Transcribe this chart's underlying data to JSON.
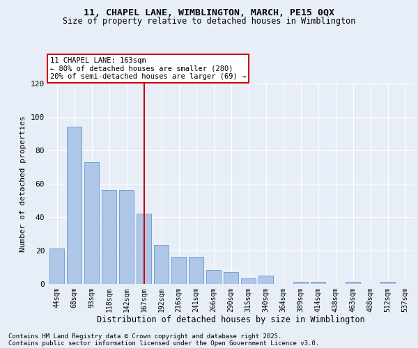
{
  "title1": "11, CHAPEL LANE, WIMBLINGTON, MARCH, PE15 0QX",
  "title2": "Size of property relative to detached houses in Wimblington",
  "xlabel": "Distribution of detached houses by size in Wimblington",
  "ylabel": "Number of detached properties",
  "categories": [
    "44sqm",
    "68sqm",
    "93sqm",
    "118sqm",
    "142sqm",
    "167sqm",
    "192sqm",
    "216sqm",
    "241sqm",
    "266sqm",
    "290sqm",
    "315sqm",
    "340sqm",
    "364sqm",
    "389sqm",
    "414sqm",
    "438sqm",
    "463sqm",
    "488sqm",
    "512sqm",
    "537sqm"
  ],
  "values": [
    21,
    94,
    73,
    56,
    56,
    42,
    23,
    16,
    16,
    8,
    7,
    3,
    5,
    0,
    1,
    1,
    0,
    1,
    0,
    1,
    0
  ],
  "bar_color": "#aec6e8",
  "bar_edge_color": "#6699cc",
  "vline_x_index": 5,
  "vline_color": "#cc0000",
  "annotation_line1": "11 CHAPEL LANE: 163sqm",
  "annotation_line2": "← 80% of detached houses are smaller (280)",
  "annotation_line3": "20% of semi-detached houses are larger (69) →",
  "annotation_box_color": "#ffffff",
  "annotation_box_edge": "#cc0000",
  "ylim": [
    0,
    120
  ],
  "yticks": [
    0,
    20,
    40,
    60,
    80,
    100,
    120
  ],
  "footer1": "Contains HM Land Registry data © Crown copyright and database right 2025.",
  "footer2": "Contains public sector information licensed under the Open Government Licence v3.0.",
  "bg_color": "#e8eef8",
  "plot_bg_color": "#e8eef8",
  "grid_color": "#ffffff"
}
